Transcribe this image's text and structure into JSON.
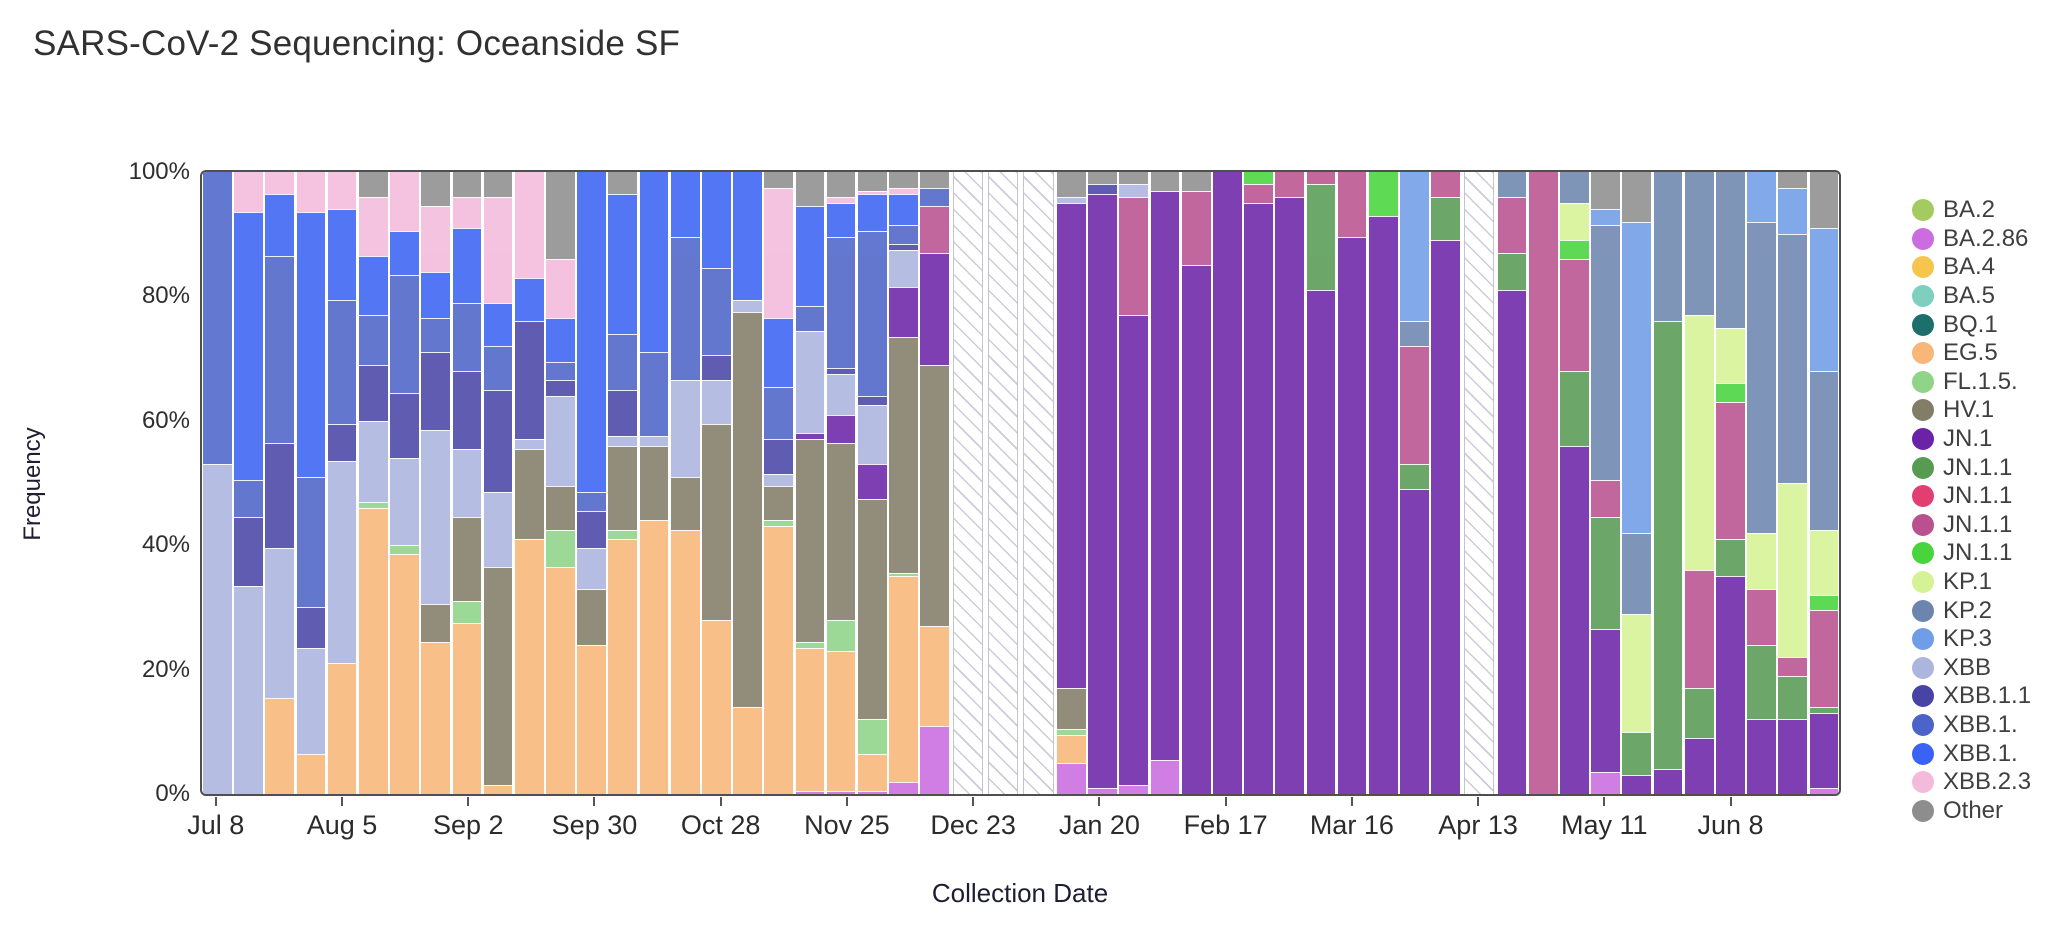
{
  "page": {
    "title": "SARS-CoV-2 Sequencing: Oceanside SF"
  },
  "chart_data": {
    "type": "bar",
    "subtype": "stacked-percent-column",
    "title": "SARS-CoV-2 Sequencing: Oceanside SF",
    "xlabel": "Collection Date",
    "ylabel": "Frequency",
    "ylim": [
      0,
      100
    ],
    "y_ticks": [
      "0%",
      "20%",
      "40%",
      "60%",
      "80%",
      "100%"
    ],
    "grid": "off",
    "legend_position": "right",
    "missing_week_style": "white-diagonal-hatch",
    "variants": {
      "BA.2": {
        "label": "BA.2",
        "color": "#a3cb60"
      },
      "BA.2.86": {
        "label": "BA.2.86",
        "color": "#cb6ce1"
      },
      "BA.4": {
        "label": "BA.4",
        "color": "#f5c54e"
      },
      "BA.5": {
        "label": "BA.5",
        "color": "#7fcfc1"
      },
      "BQ.1": {
        "label": "BQ.1",
        "color": "#1d6f6c"
      },
      "EG.5": {
        "label": "EG.5",
        "color": "#f8b678"
      },
      "FL.1.5": {
        "label": "FL.1.5.",
        "color": "#8fd487"
      },
      "HV.1": {
        "label": "HV.1",
        "color": "#817d67"
      },
      "JN.1": {
        "label": "JN.1",
        "color": "#6a23a6"
      },
      "JN.1.1a": {
        "label": "JN.1.1",
        "color": "#579b53"
      },
      "JN.1.1b": {
        "label": "JN.1.1",
        "color": "#e23e71"
      },
      "JN.1.1c": {
        "label": "JN.1.1",
        "color": "#b9518f"
      },
      "JN.1.1d": {
        "label": "JN.1.1",
        "color": "#47d43c"
      },
      "KP.1": {
        "label": "KP.1",
        "color": "#d5f394"
      },
      "KP.2": {
        "label": "KP.2",
        "color": "#6c85ae"
      },
      "KP.3": {
        "label": "KP.3",
        "color": "#6f9de7"
      },
      "XBB": {
        "label": "XBB",
        "color": "#abb5de"
      },
      "XBB.1.1": {
        "label": "XBB.1.1",
        "color": "#4844a6"
      },
      "XBB.1.a": {
        "label": "XBB.1.",
        "color": "#4c64c9"
      },
      "XBB.1.b": {
        "label": "XBB.1.",
        "color": "#3a62f4"
      },
      "XBB.2.3": {
        "label": "XBB.2.3",
        "color": "#f3badb"
      },
      "Other": {
        "label": "Other",
        "color": "#8d8d8d"
      }
    },
    "stack_order_bottom_to_top": [
      "BA.2",
      "BA.2.86",
      "BA.4",
      "BA.5",
      "BQ.1",
      "EG.5",
      "FL.1.5",
      "HV.1",
      "JN.1",
      "JN.1.1a",
      "JN.1.1b",
      "JN.1.1c",
      "JN.1.1d",
      "KP.1",
      "KP.2",
      "KP.3",
      "XBB",
      "XBB.1.1",
      "XBB.1.a",
      "XBB.1.b",
      "XBB.2.3",
      "Other"
    ],
    "legend_order_top_to_bottom": [
      "BA.2",
      "BA.2.86",
      "BA.4",
      "BA.5",
      "BQ.1",
      "EG.5",
      "FL.1.5",
      "HV.1",
      "JN.1",
      "JN.1.1a",
      "JN.1.1b",
      "JN.1.1c",
      "JN.1.1d",
      "KP.1",
      "KP.2",
      "KP.3",
      "XBB",
      "XBB.1.1",
      "XBB.1.a",
      "XBB.1.b",
      "XBB.2.3",
      "Other"
    ],
    "x_ticks": [
      {
        "index": 0,
        "label": "Jul 8"
      },
      {
        "index": 4,
        "label": "Aug 5"
      },
      {
        "index": 8,
        "label": "Sep 2"
      },
      {
        "index": 12,
        "label": "Sep 30"
      },
      {
        "index": 16,
        "label": "Oct 28"
      },
      {
        "index": 20,
        "label": "Nov 25"
      },
      {
        "index": 24,
        "label": "Dec 23"
      },
      {
        "index": 28,
        "label": "Jan 20"
      },
      {
        "index": 32,
        "label": "Feb 17"
      },
      {
        "index": 36,
        "label": "Mar 16"
      },
      {
        "index": 40,
        "label": "Apr 13"
      },
      {
        "index": 44,
        "label": "May 11"
      },
      {
        "index": 48,
        "label": "Jun 8"
      }
    ],
    "bars": [
      {
        "date": "Jul 8",
        "segments": {
          "XBB": 53,
          "XBB.1.a": 47
        }
      },
      {
        "date": "Jul 15",
        "segments": {
          "XBB": 33.5,
          "XBB.1.1": 11,
          "XBB.1.a": 6,
          "XBB.1.b": 43,
          "XBB.2.3": 6.5
        }
      },
      {
        "date": "Jul 22",
        "segments": {
          "EG.5": 15.5,
          "XBB": 24,
          "XBB.1.1": 17,
          "XBB.1.a": 30,
          "XBB.1.b": 10,
          "XBB.2.3": 3.5
        }
      },
      {
        "date": "Jul 29",
        "segments": {
          "EG.5": 6.5,
          "XBB": 17,
          "XBB.1.1": 6.5,
          "XBB.1.a": 21,
          "XBB.1.b": 42.5,
          "XBB.2.3": 6.5
        }
      },
      {
        "date": "Aug 5",
        "segments": {
          "EG.5": 21,
          "XBB": 32.5,
          "XBB.1.1": 6,
          "XBB.1.a": 20,
          "XBB.1.b": 14.5,
          "XBB.2.3": 6
        }
      },
      {
        "date": "Aug 12",
        "segments": {
          "EG.5": 46,
          "FL.1.5": 1,
          "XBB": 13,
          "XBB.1.1": 9,
          "XBB.1.a": 8,
          "XBB.1.b": 9.5,
          "XBB.2.3": 9.5,
          "Other": 4
        }
      },
      {
        "date": "Aug 19",
        "segments": {
          "EG.5": 38.5,
          "FL.1.5": 1.5,
          "XBB": 14,
          "XBB.1.1": 10.5,
          "XBB.1.a": 19,
          "XBB.1.b": 7,
          "XBB.2.3": 9.5
        }
      },
      {
        "date": "Aug 26",
        "segments": {
          "EG.5": 24.5,
          "HV.1": 6,
          "XBB": 28,
          "XBB.1.1": 12.5,
          "XBB.1.a": 5.5,
          "XBB.1.b": 7.5,
          "XBB.2.3": 10.5,
          "Other": 5.5
        }
      },
      {
        "date": "Sep 2",
        "segments": {
          "EG.5": 27.5,
          "FL.1.5": 3.5,
          "HV.1": 13.5,
          "XBB": 11,
          "XBB.1.1": 12.5,
          "XBB.1.a": 11,
          "XBB.1.b": 12,
          "XBB.2.3": 5,
          "Other": 4
        }
      },
      {
        "date": "Sep 9",
        "segments": {
          "EG.5": 1.5,
          "HV.1": 35,
          "XBB": 12,
          "XBB.1.1": 16.5,
          "XBB.1.a": 7,
          "XBB.1.b": 7,
          "XBB.2.3": 17,
          "Other": 4
        }
      },
      {
        "date": "Sep 16",
        "segments": {
          "EG.5": 41,
          "HV.1": 14.5,
          "XBB": 1.5,
          "XBB.1.1": 19,
          "XBB.1.b": 7,
          "XBB.2.3": 17
        }
      },
      {
        "date": "Sep 23",
        "segments": {
          "EG.5": 36.5,
          "FL.1.5": 6,
          "HV.1": 7,
          "XBB": 14.5,
          "XBB.1.1": 2.5,
          "XBB.1.a": 3,
          "XBB.1.b": 7,
          "XBB.2.3": 9.5,
          "Other": 14
        }
      },
      {
        "date": "Sep 30",
        "segments": {
          "EG.5": 24,
          "HV.1": 9,
          "XBB": 6.5,
          "XBB.1.1": 6,
          "XBB.1.a": 3,
          "XBB.1.b": 51.5
        }
      },
      {
        "date": "Oct 7",
        "segments": {
          "EG.5": 41,
          "FL.1.5": 1.5,
          "HV.1": 13.5,
          "XBB": 1.5,
          "XBB.1.1": 7.5,
          "XBB.1.a": 9,
          "XBB.1.b": 22.5,
          "Other": 3.5
        }
      },
      {
        "date": "Oct 14",
        "segments": {
          "EG.5": 44,
          "HV.1": 12,
          "XBB": 1.5,
          "XBB.1.a": 13.5,
          "XBB.1.b": 29
        }
      },
      {
        "date": "Oct 21",
        "segments": {
          "EG.5": 42.5,
          "HV.1": 8.5,
          "XBB": 15.5,
          "XBB.1.a": 23,
          "XBB.1.b": 10.5
        }
      },
      {
        "date": "Oct 28",
        "segments": {
          "EG.5": 28,
          "HV.1": 31.5,
          "XBB": 7,
          "XBB.1.1": 4,
          "XBB.1.a": 14,
          "XBB.1.b": 15.5
        }
      },
      {
        "date": "Nov 4",
        "segments": {
          "EG.5": 14,
          "HV.1": 63.5,
          "XBB": 2,
          "XBB.1.b": 20.5
        }
      },
      {
        "date": "Nov 11",
        "segments": {
          "EG.5": 43,
          "FL.1.5": 1,
          "HV.1": 5.5,
          "XBB": 2,
          "XBB.1.1": 5.5,
          "XBB.1.a": 8.5,
          "XBB.1.b": 11,
          "XBB.2.3": 21,
          "Other": 2.5
        }
      },
      {
        "date": "Nov 18",
        "segments": {
          "BA.2.86": 0.5,
          "EG.5": 23,
          "FL.1.5": 1,
          "HV.1": 32.5,
          "JN.1": 1,
          "XBB": 16.5,
          "XBB.1.a": 4,
          "XBB.1.b": 16,
          "Other": 5.5
        }
      },
      {
        "date": "Nov 25",
        "segments": {
          "BA.2.86": 0.5,
          "EG.5": 22.5,
          "FL.1.5": 5,
          "HV.1": 28.5,
          "JN.1": 4.5,
          "XBB": 6.5,
          "XBB.1.1": 1,
          "XBB.1.a": 21,
          "XBB.1.b": 5.5,
          "XBB.2.3": 1,
          "Other": 4
        }
      },
      {
        "date": "Dec 2",
        "segments": {
          "BA.2.86": 0.5,
          "EG.5": 6,
          "FL.1.5": 5.5,
          "HV.1": 35.5,
          "JN.1": 5.5,
          "XBB": 9.5,
          "XBB.1.1": 1.5,
          "XBB.1.a": 26.5,
          "XBB.1.b": 6,
          "XBB.2.3": 0.5,
          "Other": 3
        }
      },
      {
        "date": "Dec 9",
        "segments": {
          "BA.2.86": 2,
          "EG.5": 33,
          "FL.1.5": 0.5,
          "HV.1": 38,
          "JN.1": 8,
          "XBB": 6,
          "XBB.1.1": 1,
          "XBB.1.a": 3,
          "XBB.1.b": 5,
          "XBB.2.3": 1,
          "Other": 2.5
        }
      },
      {
        "date": "Dec 16",
        "segments": {
          "BA.2.86": 11,
          "EG.5": 16,
          "HV.1": 42,
          "JN.1": 18,
          "JN.1.1c": 7.5,
          "XBB.1.a": 3,
          "Other": 2.5
        }
      },
      {
        "date": "Dec 23",
        "missing": true,
        "segments": {}
      },
      {
        "date": "Dec 30",
        "missing": true,
        "segments": {}
      },
      {
        "date": "Jan 6",
        "missing": true,
        "segments": {}
      },
      {
        "date": "Jan 13",
        "segments": {
          "BA.2.86": 5,
          "EG.5": 4.5,
          "FL.1.5": 1,
          "HV.1": 6.5,
          "JN.1": 78,
          "XBB": 1,
          "Other": 4
        }
      },
      {
        "date": "Jan 20",
        "segments": {
          "BA.2.86": 1,
          "JN.1": 95.5,
          "XBB.1.1": 1.5,
          "Other": 2
        }
      },
      {
        "date": "Jan 27",
        "segments": {
          "BA.2.86": 1.5,
          "JN.1": 75.5,
          "JN.1.1c": 19,
          "XBB": 2,
          "Other": 2
        }
      },
      {
        "date": "Feb 3",
        "segments": {
          "BA.2.86": 5.5,
          "JN.1": 91.5,
          "Other": 3
        }
      },
      {
        "date": "Feb 10",
        "segments": {
          "JN.1": 85,
          "JN.1.1c": 12,
          "Other": 3
        }
      },
      {
        "date": "Feb 17",
        "segments": {
          "JN.1": 100
        }
      },
      {
        "date": "Feb 24",
        "segments": {
          "JN.1": 95,
          "JN.1.1c": 3,
          "JN.1.1d": 2
        }
      },
      {
        "date": "Mar 2",
        "segments": {
          "JN.1": 96,
          "JN.1.1c": 4
        }
      },
      {
        "date": "Mar 9",
        "segments": {
          "JN.1": 81,
          "JN.1.1a": 17,
          "JN.1.1c": 2
        }
      },
      {
        "date": "Mar 16",
        "segments": {
          "JN.1": 89.5,
          "JN.1.1c": 10.5
        }
      },
      {
        "date": "Mar 23",
        "segments": {
          "JN.1": 93,
          "JN.1.1d": 7
        }
      },
      {
        "date": "Mar 30",
        "segments": {
          "JN.1": 49,
          "JN.1.1a": 4,
          "JN.1.1c": 19,
          "KP.2": 4,
          "KP.3": 24
        }
      },
      {
        "date": "Apr 6",
        "segments": {
          "JN.1": 89,
          "JN.1.1a": 7,
          "JN.1.1c": 4
        }
      },
      {
        "date": "Apr 13",
        "missing": true,
        "segments": {}
      },
      {
        "date": "Apr 20",
        "segments": {
          "JN.1": 81,
          "JN.1.1a": 6,
          "JN.1.1c": 9,
          "KP.2": 4
        }
      },
      {
        "date": "Apr 27",
        "segments": {
          "JN.1.1c": 100
        }
      },
      {
        "date": "May 4",
        "segments": {
          "JN.1": 56,
          "JN.1.1a": 12,
          "JN.1.1c": 18,
          "JN.1.1d": 3,
          "KP.1": 6,
          "KP.2": 5
        }
      },
      {
        "date": "May 11",
        "segments": {
          "BA.2.86": 3.5,
          "JN.1": 23,
          "JN.1.1a": 18,
          "JN.1.1c": 6,
          "KP.2": 41,
          "KP.3": 2.5,
          "Other": 6
        }
      },
      {
        "date": "May 18",
        "segments": {
          "JN.1": 3,
          "JN.1.1a": 7,
          "KP.1": 19,
          "KP.2": 13,
          "KP.3": 50,
          "Other": 8
        }
      },
      {
        "date": "May 25",
        "segments": {
          "JN.1": 4,
          "JN.1.1a": 72,
          "KP.2": 24
        }
      },
      {
        "date": "Jun 1",
        "segments": {
          "JN.1": 9,
          "JN.1.1a": 8,
          "JN.1.1c": 19,
          "KP.1": 41,
          "KP.2": 23
        }
      },
      {
        "date": "Jun 8",
        "segments": {
          "JN.1": 35,
          "JN.1.1a": 6,
          "JN.1.1c": 22,
          "JN.1.1d": 3,
          "KP.1": 9,
          "KP.2": 25
        }
      },
      {
        "date": "Jun 15",
        "segments": {
          "JN.1": 12,
          "JN.1.1a": 12,
          "JN.1.1c": 9,
          "KP.1": 9,
          "KP.2": 50,
          "KP.3": 8
        }
      },
      {
        "date": "Jun 22",
        "segments": {
          "JN.1": 12,
          "JN.1.1a": 7,
          "JN.1.1c": 3,
          "KP.1": 28,
          "KP.2": 40,
          "KP.3": 7.5,
          "Other": 2.5
        }
      },
      {
        "date": "Jun 29",
        "segments": {
          "BA.2.86": 1,
          "JN.1": 12,
          "JN.1.1a": 1,
          "JN.1.1c": 15.5,
          "JN.1.1d": 2.5,
          "KP.1": 10.5,
          "KP.2": 25.5,
          "KP.3": 23,
          "Other": 9
        }
      }
    ]
  }
}
